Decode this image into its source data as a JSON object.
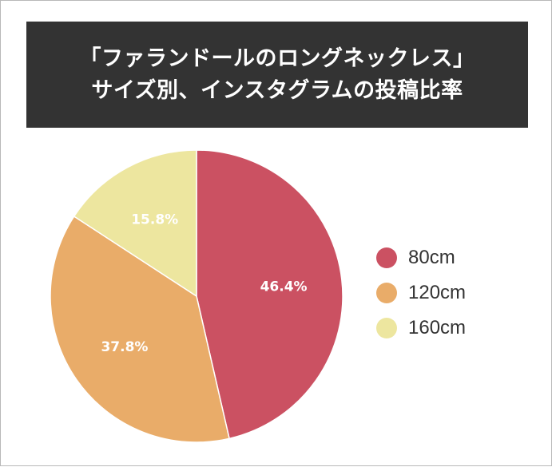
{
  "title": {
    "line1": "「ファランドールのロングネックレス」",
    "line2": "サイズ別、インスタグラムの投稿比率"
  },
  "chart_data": {
    "type": "pie",
    "title": "「ファランドールのロングネックレス」サイズ別、インスタグラムの投稿比率",
    "categories": [
      "80cm",
      "120cm",
      "160cm"
    ],
    "values": [
      46.4,
      37.8,
      15.8
    ],
    "labels": [
      "46.4%",
      "37.8%",
      "15.8%"
    ],
    "colors": [
      "#cb5162",
      "#e9ac69",
      "#ede69f"
    ],
    "legend_position": "right"
  }
}
